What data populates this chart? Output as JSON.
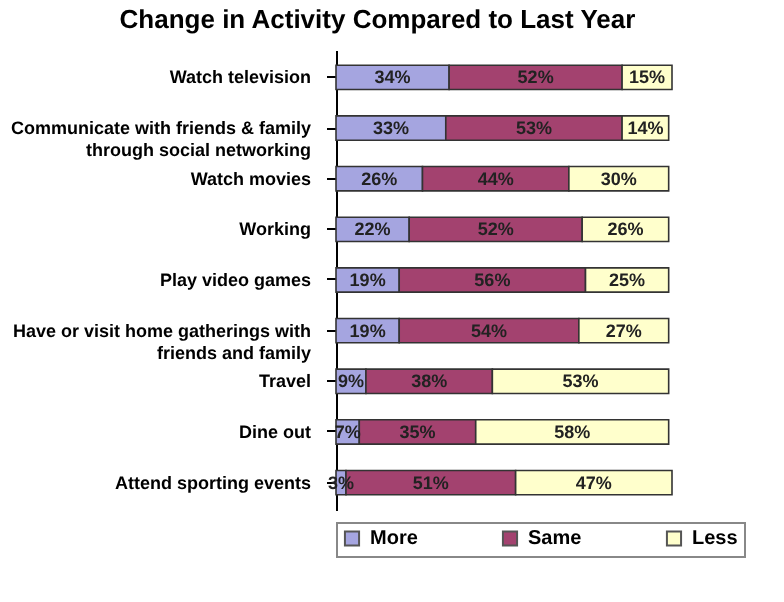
{
  "chart_data": {
    "type": "bar",
    "orientation": "horizontal",
    "stacked": true,
    "title": "Change in Activity Compared to Last Year",
    "categories": [
      "Watch television",
      "Communicate with friends & family through social networking",
      "Watch movies",
      "Working",
      "Play video games",
      "Have or visit home gatherings with friends and family",
      "Travel",
      "Dine out",
      "Attend sporting events"
    ],
    "series": [
      {
        "name": "More",
        "color": "#a5a5e0",
        "values": [
          34,
          33,
          26,
          22,
          19,
          19,
          9,
          7,
          3
        ],
        "value_labels": [
          "34%",
          "33%",
          "26%",
          "22%",
          "19%",
          "19%",
          "9%",
          "7%",
          "3%"
        ]
      },
      {
        "name": "Same",
        "color": "#a3426f",
        "values": [
          52,
          53,
          44,
          52,
          56,
          54,
          38,
          35,
          51
        ],
        "value_labels": [
          "52%",
          "53%",
          "44%",
          "52%",
          "56%",
          "54%",
          "38%",
          "35%",
          "51%"
        ]
      },
      {
        "name": "Less",
        "color": "#ffffcc",
        "values": [
          15,
          14,
          30,
          26,
          25,
          27,
          53,
          58,
          47
        ],
        "value_labels": [
          "15%",
          "14%",
          "30%",
          "26%",
          "25%",
          "27%",
          "53%",
          "58%",
          "47%"
        ]
      }
    ],
    "xlim": [
      0,
      101
    ],
    "tick_labels": "y",
    "legend": "bottom"
  }
}
